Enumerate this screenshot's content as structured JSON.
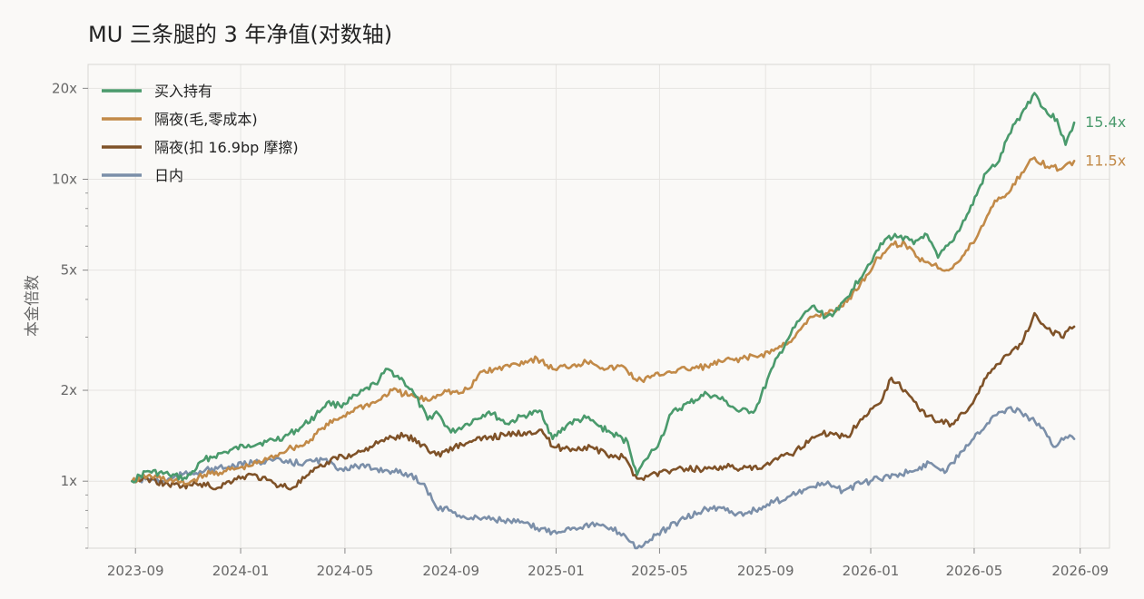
{
  "chart_data": {
    "type": "line",
    "title": "MU 三条腿的 3 年净值(对数轴)",
    "xlabel": "",
    "ylabel": "本金倍数",
    "yscale": "log",
    "ylim": [
      0.6,
      24
    ],
    "xlim": [
      "2023-07-08",
      "2026-10-05"
    ],
    "yticks": [
      {
        "value": 1,
        "label": "1x"
      },
      {
        "value": 2,
        "label": "2x"
      },
      {
        "value": 5,
        "label": "5x"
      },
      {
        "value": 10,
        "label": "10x"
      },
      {
        "value": 20,
        "label": "20x"
      }
    ],
    "xticks": [
      {
        "date": "2023-09-01",
        "label": "2023-09"
      },
      {
        "date": "2024-01-01",
        "label": "2024-01"
      },
      {
        "date": "2024-05-01",
        "label": "2024-05"
      },
      {
        "date": "2024-09-01",
        "label": "2024-09"
      },
      {
        "date": "2025-01-01",
        "label": "2025-01"
      },
      {
        "date": "2025-05-01",
        "label": "2025-05"
      },
      {
        "date": "2025-09-01",
        "label": "2025-09"
      },
      {
        "date": "2026-01-01",
        "label": "2026-01"
      },
      {
        "date": "2026-05-01",
        "label": "2026-05"
      },
      {
        "date": "2026-09-01",
        "label": "2026-09"
      }
    ],
    "grid": true,
    "legend_position": "top-left",
    "series": [
      {
        "name": "买入持有",
        "color": "#4a9a6c",
        "end_label": "15.4x",
        "points": [
          [
            "2023-08-28",
            1.0
          ],
          [
            "2023-09-15",
            1.08
          ],
          [
            "2023-10-10",
            1.05
          ],
          [
            "2023-10-30",
            1.02
          ],
          [
            "2023-11-20",
            1.18
          ],
          [
            "2023-12-15",
            1.25
          ],
          [
            "2024-01-10",
            1.32
          ],
          [
            "2024-01-31",
            1.35
          ],
          [
            "2024-02-20",
            1.4
          ],
          [
            "2024-03-10",
            1.5
          ],
          [
            "2024-03-28",
            1.65
          ],
          [
            "2024-04-10",
            1.82
          ],
          [
            "2024-04-25",
            1.78
          ],
          [
            "2024-05-15",
            1.92
          ],
          [
            "2024-06-05",
            2.1
          ],
          [
            "2024-06-20",
            2.35
          ],
          [
            "2024-07-08",
            2.15
          ],
          [
            "2024-07-20",
            1.95
          ],
          [
            "2024-08-05",
            1.6
          ],
          [
            "2024-08-15",
            1.7
          ],
          [
            "2024-09-01",
            1.45
          ],
          [
            "2024-09-20",
            1.55
          ],
          [
            "2024-10-15",
            1.7
          ],
          [
            "2024-11-05",
            1.55
          ],
          [
            "2024-11-25",
            1.65
          ],
          [
            "2024-12-15",
            1.7
          ],
          [
            "2024-12-28",
            1.38
          ],
          [
            "2025-01-15",
            1.55
          ],
          [
            "2025-02-05",
            1.62
          ],
          [
            "2025-02-20",
            1.52
          ],
          [
            "2025-03-05",
            1.45
          ],
          [
            "2025-03-25",
            1.35
          ],
          [
            "2025-04-05",
            1.05
          ],
          [
            "2025-04-15",
            1.18
          ],
          [
            "2025-05-01",
            1.35
          ],
          [
            "2025-05-15",
            1.68
          ],
          [
            "2025-06-05",
            1.82
          ],
          [
            "2025-06-25",
            1.95
          ],
          [
            "2025-07-15",
            1.85
          ],
          [
            "2025-08-01",
            1.7
          ],
          [
            "2025-08-20",
            1.72
          ],
          [
            "2025-09-10",
            2.4
          ],
          [
            "2025-09-25",
            2.9
          ],
          [
            "2025-10-10",
            3.4
          ],
          [
            "2025-10-25",
            3.8
          ],
          [
            "2025-11-10",
            3.5
          ],
          [
            "2025-11-25",
            3.7
          ],
          [
            "2025-12-10",
            4.3
          ],
          [
            "2026-01-05",
            5.6
          ],
          [
            "2026-01-20",
            6.4
          ],
          [
            "2026-02-05",
            6.5
          ],
          [
            "2026-02-20",
            6.1
          ],
          [
            "2026-03-05",
            6.6
          ],
          [
            "2026-03-20",
            5.5
          ],
          [
            "2026-04-05",
            6.2
          ],
          [
            "2026-04-25",
            7.8
          ],
          [
            "2026-05-15",
            10.5
          ],
          [
            "2026-05-30",
            11.5
          ],
          [
            "2026-06-10",
            14.0
          ],
          [
            "2026-06-25",
            16.5
          ],
          [
            "2026-07-10",
            19.3
          ],
          [
            "2026-07-25",
            16.5
          ],
          [
            "2026-08-05",
            15.8
          ],
          [
            "2026-08-15",
            13.0
          ],
          [
            "2026-08-25",
            15.4
          ]
        ]
      },
      {
        "name": "隔夜(毛,零成本)",
        "color": "#c28a48",
        "end_label": "11.5x",
        "points": [
          [
            "2023-08-28",
            1.0
          ],
          [
            "2023-09-15",
            1.04
          ],
          [
            "2023-10-10",
            1.01
          ],
          [
            "2023-10-30",
            0.98
          ],
          [
            "2023-11-20",
            1.05
          ],
          [
            "2023-12-15",
            1.08
          ],
          [
            "2024-01-10",
            1.12
          ],
          [
            "2024-02-01",
            1.18
          ],
          [
            "2024-02-25",
            1.28
          ],
          [
            "2024-03-15",
            1.32
          ],
          [
            "2024-04-05",
            1.5
          ],
          [
            "2024-04-25",
            1.62
          ],
          [
            "2024-05-15",
            1.75
          ],
          [
            "2024-06-05",
            1.82
          ],
          [
            "2024-06-25",
            2.0
          ],
          [
            "2024-07-15",
            1.92
          ],
          [
            "2024-08-05",
            1.85
          ],
          [
            "2024-08-25",
            2.0
          ],
          [
            "2024-09-10",
            1.95
          ],
          [
            "2024-09-25",
            2.05
          ],
          [
            "2024-10-05",
            2.3
          ],
          [
            "2024-10-25",
            2.35
          ],
          [
            "2024-11-15",
            2.45
          ],
          [
            "2024-12-10",
            2.55
          ],
          [
            "2024-12-28",
            2.35
          ],
          [
            "2025-01-20",
            2.42
          ],
          [
            "2025-02-10",
            2.5
          ],
          [
            "2025-02-28",
            2.35
          ],
          [
            "2025-03-20",
            2.4
          ],
          [
            "2025-04-05",
            2.15
          ],
          [
            "2025-04-20",
            2.2
          ],
          [
            "2025-05-10",
            2.3
          ],
          [
            "2025-06-01",
            2.35
          ],
          [
            "2025-06-25",
            2.4
          ],
          [
            "2025-07-15",
            2.5
          ],
          [
            "2025-08-05",
            2.55
          ],
          [
            "2025-08-25",
            2.6
          ],
          [
            "2025-09-15",
            2.75
          ],
          [
            "2025-10-05",
            3.0
          ],
          [
            "2025-10-25",
            3.5
          ],
          [
            "2025-11-10",
            3.6
          ],
          [
            "2025-11-30",
            3.8
          ],
          [
            "2025-12-20",
            4.5
          ],
          [
            "2026-01-10",
            5.5
          ],
          [
            "2026-01-25",
            6.1
          ],
          [
            "2026-02-10",
            6.1
          ],
          [
            "2026-02-25",
            5.5
          ],
          [
            "2026-03-15",
            5.2
          ],
          [
            "2026-03-30",
            5.0
          ],
          [
            "2026-04-15",
            5.4
          ],
          [
            "2026-05-05",
            6.5
          ],
          [
            "2026-05-25",
            8.5
          ],
          [
            "2026-06-10",
            9.0
          ],
          [
            "2026-06-25",
            10.5
          ],
          [
            "2026-07-10",
            11.8
          ],
          [
            "2026-07-25",
            11.0
          ],
          [
            "2026-08-10",
            10.8
          ],
          [
            "2026-08-25",
            11.5
          ]
        ]
      },
      {
        "name": "隔夜(扣 16.9bp 摩擦)",
        "color": "#7f5228",
        "end_label": "",
        "points": [
          [
            "2023-08-28",
            1.0
          ],
          [
            "2023-09-15",
            1.02
          ],
          [
            "2023-10-05",
            0.98
          ],
          [
            "2023-10-25",
            0.96
          ],
          [
            "2023-11-15",
            0.98
          ],
          [
            "2023-12-05",
            0.95
          ],
          [
            "2023-12-25",
            1.02
          ],
          [
            "2024-01-15",
            1.05
          ],
          [
            "2024-02-10",
            0.98
          ],
          [
            "2024-03-01",
            0.95
          ],
          [
            "2024-03-20",
            1.05
          ],
          [
            "2024-04-05",
            1.12
          ],
          [
            "2024-04-20",
            1.2
          ],
          [
            "2024-05-10",
            1.22
          ],
          [
            "2024-05-30",
            1.3
          ],
          [
            "2024-06-20",
            1.38
          ],
          [
            "2024-07-10",
            1.42
          ],
          [
            "2024-07-30",
            1.32
          ],
          [
            "2024-08-15",
            1.22
          ],
          [
            "2024-09-05",
            1.3
          ],
          [
            "2024-09-25",
            1.35
          ],
          [
            "2024-10-15",
            1.4
          ],
          [
            "2024-11-05",
            1.42
          ],
          [
            "2024-11-25",
            1.45
          ],
          [
            "2024-12-15",
            1.48
          ],
          [
            "2024-12-28",
            1.3
          ],
          [
            "2025-01-20",
            1.28
          ],
          [
            "2025-02-10",
            1.3
          ],
          [
            "2025-03-01",
            1.22
          ],
          [
            "2025-03-20",
            1.2
          ],
          [
            "2025-04-05",
            1.02
          ],
          [
            "2025-04-20",
            1.05
          ],
          [
            "2025-05-10",
            1.08
          ],
          [
            "2025-06-01",
            1.1
          ],
          [
            "2025-06-25",
            1.1
          ],
          [
            "2025-07-15",
            1.12
          ],
          [
            "2025-08-05",
            1.1
          ],
          [
            "2025-08-25",
            1.1
          ],
          [
            "2025-09-15",
            1.18
          ],
          [
            "2025-10-05",
            1.25
          ],
          [
            "2025-10-25",
            1.4
          ],
          [
            "2025-11-15",
            1.45
          ],
          [
            "2025-12-05",
            1.4
          ],
          [
            "2025-12-20",
            1.6
          ],
          [
            "2026-01-10",
            1.8
          ],
          [
            "2026-01-25",
            2.2
          ],
          [
            "2026-02-10",
            2.0
          ],
          [
            "2026-02-25",
            1.75
          ],
          [
            "2026-03-15",
            1.6
          ],
          [
            "2026-04-05",
            1.55
          ],
          [
            "2026-04-25",
            1.75
          ],
          [
            "2026-05-15",
            2.2
          ],
          [
            "2026-06-05",
            2.6
          ],
          [
            "2026-06-25",
            2.85
          ],
          [
            "2026-07-10",
            3.6
          ],
          [
            "2026-07-25",
            3.2
          ],
          [
            "2026-08-10",
            3.0
          ],
          [
            "2026-08-25",
            3.25
          ]
        ]
      },
      {
        "name": "日内",
        "color": "#7b8fa9",
        "end_label": "",
        "points": [
          [
            "2023-08-28",
            1.0
          ],
          [
            "2023-09-15",
            1.02
          ],
          [
            "2023-10-05",
            1.0
          ],
          [
            "2023-10-25",
            1.05
          ],
          [
            "2023-11-15",
            1.08
          ],
          [
            "2023-12-05",
            1.1
          ],
          [
            "2023-12-25",
            1.12
          ],
          [
            "2024-01-15",
            1.15
          ],
          [
            "2024-02-05",
            1.18
          ],
          [
            "2024-02-25",
            1.15
          ],
          [
            "2024-03-15",
            1.15
          ],
          [
            "2024-04-05",
            1.18
          ],
          [
            "2024-04-25",
            1.1
          ],
          [
            "2024-05-15",
            1.12
          ],
          [
            "2024-06-05",
            1.1
          ],
          [
            "2024-06-25",
            1.08
          ],
          [
            "2024-07-15",
            1.05
          ],
          [
            "2024-08-01",
            0.98
          ],
          [
            "2024-08-15",
            0.82
          ],
          [
            "2024-09-01",
            0.8
          ],
          [
            "2024-09-20",
            0.75
          ],
          [
            "2024-10-10",
            0.76
          ],
          [
            "2024-11-01",
            0.74
          ],
          [
            "2024-11-20",
            0.73
          ],
          [
            "2024-12-10",
            0.7
          ],
          [
            "2024-12-28",
            0.68
          ],
          [
            "2025-01-20",
            0.7
          ],
          [
            "2025-02-10",
            0.72
          ],
          [
            "2025-03-01",
            0.7
          ],
          [
            "2025-03-20",
            0.67
          ],
          [
            "2025-04-05",
            0.6
          ],
          [
            "2025-04-20",
            0.64
          ],
          [
            "2025-05-10",
            0.7
          ],
          [
            "2025-05-30",
            0.75
          ],
          [
            "2025-06-20",
            0.8
          ],
          [
            "2025-07-10",
            0.82
          ],
          [
            "2025-07-30",
            0.78
          ],
          [
            "2025-08-20",
            0.8
          ],
          [
            "2025-09-10",
            0.85
          ],
          [
            "2025-10-01",
            0.9
          ],
          [
            "2025-10-20",
            0.95
          ],
          [
            "2025-11-10",
            0.98
          ],
          [
            "2025-11-30",
            0.93
          ],
          [
            "2025-12-20",
            0.98
          ],
          [
            "2026-01-10",
            1.02
          ],
          [
            "2026-01-30",
            1.05
          ],
          [
            "2026-02-20",
            1.08
          ],
          [
            "2026-03-10",
            1.15
          ],
          [
            "2026-03-30",
            1.08
          ],
          [
            "2026-04-15",
            1.25
          ],
          [
            "2026-05-05",
            1.45
          ],
          [
            "2026-05-25",
            1.65
          ],
          [
            "2026-06-10",
            1.75
          ],
          [
            "2026-06-25",
            1.68
          ],
          [
            "2026-07-15",
            1.55
          ],
          [
            "2026-08-01",
            1.3
          ],
          [
            "2026-08-15",
            1.4
          ],
          [
            "2026-08-25",
            1.38
          ]
        ]
      }
    ]
  }
}
